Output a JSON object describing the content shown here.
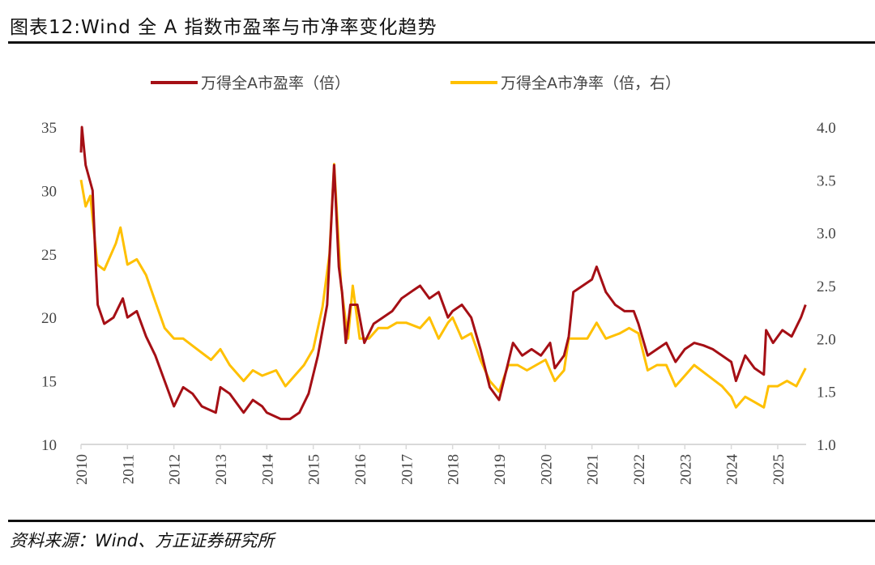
{
  "title": "图表12:Wind 全 A 指数市盈率与市净率变化趋势",
  "source": "资料来源：Wind、方正证券研究所",
  "chart_data": {
    "type": "line",
    "title": "图表12:Wind 全 A 指数市盈率与市净率变化趋势",
    "xlabel": "",
    "ylabel_left": "",
    "ylabel_right": "",
    "xlim": [
      2010,
      2025.6
    ],
    "x_ticks": [
      "2010",
      "2011",
      "2012",
      "2013",
      "2014",
      "2015",
      "2016",
      "2017",
      "2018",
      "2019",
      "2020",
      "2021",
      "2022",
      "2023",
      "2024",
      "2025"
    ],
    "ylim_left": [
      10,
      35
    ],
    "y_ticks_left": [
      "10",
      "15",
      "20",
      "25",
      "30",
      "35"
    ],
    "ylim_right": [
      1.0,
      4.0
    ],
    "y_ticks_right": [
      "1.0",
      "1.5",
      "2.0",
      "2.5",
      "3.0",
      "3.5",
      "4.0"
    ],
    "grid": false,
    "legend_position": "top-center",
    "series": [
      {
        "name": "万得全A市盈率（倍）",
        "axis": "left",
        "color": "#A50F15",
        "points": [
          [
            2010.0,
            33
          ],
          [
            2010.02,
            35
          ],
          [
            2010.1,
            32
          ],
          [
            2010.25,
            30
          ],
          [
            2010.32,
            24
          ],
          [
            2010.36,
            21
          ],
          [
            2010.5,
            19.5
          ],
          [
            2010.7,
            20
          ],
          [
            2010.9,
            21.5
          ],
          [
            2011.0,
            20
          ],
          [
            2011.2,
            20.5
          ],
          [
            2011.4,
            18.5
          ],
          [
            2011.6,
            17
          ],
          [
            2011.8,
            15
          ],
          [
            2012.0,
            13
          ],
          [
            2012.2,
            14.5
          ],
          [
            2012.4,
            14
          ],
          [
            2012.6,
            13
          ],
          [
            2012.9,
            12.5
          ],
          [
            2013.0,
            14.5
          ],
          [
            2013.2,
            14
          ],
          [
            2013.5,
            12.5
          ],
          [
            2013.7,
            13.5
          ],
          [
            2013.9,
            13
          ],
          [
            2014.0,
            12.5
          ],
          [
            2014.3,
            12
          ],
          [
            2014.5,
            12
          ],
          [
            2014.7,
            12.5
          ],
          [
            2014.9,
            14
          ],
          [
            2015.1,
            17
          ],
          [
            2015.3,
            21
          ],
          [
            2015.45,
            32
          ],
          [
            2015.55,
            24
          ],
          [
            2015.62,
            22
          ],
          [
            2015.7,
            18
          ],
          [
            2015.8,
            21
          ],
          [
            2015.95,
            21
          ],
          [
            2016.1,
            18
          ],
          [
            2016.3,
            19.5
          ],
          [
            2016.5,
            20
          ],
          [
            2016.7,
            20.5
          ],
          [
            2016.9,
            21.5
          ],
          [
            2017.1,
            22
          ],
          [
            2017.3,
            22.5
          ],
          [
            2017.5,
            21.5
          ],
          [
            2017.7,
            22
          ],
          [
            2017.9,
            20
          ],
          [
            2018.0,
            20.5
          ],
          [
            2018.2,
            21
          ],
          [
            2018.4,
            20
          ],
          [
            2018.6,
            17.5
          ],
          [
            2018.8,
            14.5
          ],
          [
            2019.0,
            13.5
          ],
          [
            2019.1,
            15
          ],
          [
            2019.3,
            18
          ],
          [
            2019.5,
            17
          ],
          [
            2019.7,
            17.5
          ],
          [
            2019.9,
            17
          ],
          [
            2020.1,
            18
          ],
          [
            2020.2,
            16
          ],
          [
            2020.4,
            17
          ],
          [
            2020.5,
            18.5
          ],
          [
            2020.6,
            22
          ],
          [
            2020.8,
            22.5
          ],
          [
            2021.0,
            23
          ],
          [
            2021.1,
            24
          ],
          [
            2021.3,
            22
          ],
          [
            2021.5,
            21
          ],
          [
            2021.7,
            20.5
          ],
          [
            2021.9,
            20.5
          ],
          [
            2022.0,
            19.5
          ],
          [
            2022.2,
            17
          ],
          [
            2022.4,
            17.5
          ],
          [
            2022.6,
            18
          ],
          [
            2022.8,
            16.5
          ],
          [
            2023.0,
            17.5
          ],
          [
            2023.2,
            18
          ],
          [
            2023.4,
            17.8
          ],
          [
            2023.6,
            17.5
          ],
          [
            2023.8,
            17
          ],
          [
            2024.0,
            16.5
          ],
          [
            2024.1,
            15
          ],
          [
            2024.3,
            17
          ],
          [
            2024.5,
            16
          ],
          [
            2024.7,
            15.5
          ],
          [
            2024.75,
            19
          ],
          [
            2024.9,
            18
          ],
          [
            2025.1,
            19
          ],
          [
            2025.3,
            18.5
          ],
          [
            2025.5,
            20
          ],
          [
            2025.6,
            21
          ]
        ]
      },
      {
        "name": "万得全A市净率（倍，右）",
        "axis": "right",
        "color": "#FFC000",
        "points": [
          [
            2010.0,
            3.5
          ],
          [
            2010.1,
            3.25
          ],
          [
            2010.2,
            3.35
          ],
          [
            2010.35,
            2.7
          ],
          [
            2010.5,
            2.65
          ],
          [
            2010.75,
            2.9
          ],
          [
            2010.85,
            3.05
          ],
          [
            2011.0,
            2.7
          ],
          [
            2011.2,
            2.75
          ],
          [
            2011.4,
            2.6
          ],
          [
            2011.6,
            2.35
          ],
          [
            2011.8,
            2.1
          ],
          [
            2012.0,
            2.0
          ],
          [
            2012.2,
            2.0
          ],
          [
            2012.5,
            1.9
          ],
          [
            2012.8,
            1.8
          ],
          [
            2013.0,
            1.9
          ],
          [
            2013.2,
            1.75
          ],
          [
            2013.5,
            1.6
          ],
          [
            2013.7,
            1.7
          ],
          [
            2013.9,
            1.65
          ],
          [
            2014.2,
            1.7
          ],
          [
            2014.4,
            1.55
          ],
          [
            2014.6,
            1.65
          ],
          [
            2014.8,
            1.75
          ],
          [
            2015.0,
            1.9
          ],
          [
            2015.2,
            2.3
          ],
          [
            2015.35,
            2.8
          ],
          [
            2015.45,
            3.65
          ],
          [
            2015.6,
            2.5
          ],
          [
            2015.75,
            2.0
          ],
          [
            2015.85,
            2.5
          ],
          [
            2016.0,
            2.0
          ],
          [
            2016.2,
            2.0
          ],
          [
            2016.4,
            2.1
          ],
          [
            2016.6,
            2.1
          ],
          [
            2016.8,
            2.15
          ],
          [
            2017.0,
            2.15
          ],
          [
            2017.3,
            2.1
          ],
          [
            2017.5,
            2.2
          ],
          [
            2017.7,
            2.0
          ],
          [
            2017.9,
            2.15
          ],
          [
            2018.0,
            2.2
          ],
          [
            2018.2,
            2.0
          ],
          [
            2018.4,
            2.05
          ],
          [
            2018.6,
            1.8
          ],
          [
            2018.8,
            1.6
          ],
          [
            2019.0,
            1.5
          ],
          [
            2019.2,
            1.75
          ],
          [
            2019.4,
            1.75
          ],
          [
            2019.6,
            1.7
          ],
          [
            2019.8,
            1.75
          ],
          [
            2020.0,
            1.8
          ],
          [
            2020.2,
            1.6
          ],
          [
            2020.4,
            1.7
          ],
          [
            2020.5,
            2.0
          ],
          [
            2020.7,
            2.0
          ],
          [
            2020.9,
            2.0
          ],
          [
            2021.1,
            2.15
          ],
          [
            2021.3,
            2.0
          ],
          [
            2021.6,
            2.05
          ],
          [
            2021.8,
            2.1
          ],
          [
            2022.0,
            2.05
          ],
          [
            2022.2,
            1.7
          ],
          [
            2022.4,
            1.75
          ],
          [
            2022.6,
            1.75
          ],
          [
            2022.8,
            1.55
          ],
          [
            2023.0,
            1.65
          ],
          [
            2023.2,
            1.75
          ],
          [
            2023.5,
            1.65
          ],
          [
            2023.8,
            1.55
          ],
          [
            2024.0,
            1.45
          ],
          [
            2024.1,
            1.35
          ],
          [
            2024.3,
            1.45
          ],
          [
            2024.5,
            1.4
          ],
          [
            2024.7,
            1.35
          ],
          [
            2024.8,
            1.55
          ],
          [
            2025.0,
            1.55
          ],
          [
            2025.2,
            1.6
          ],
          [
            2025.4,
            1.55
          ],
          [
            2025.6,
            1.72
          ]
        ]
      }
    ]
  }
}
